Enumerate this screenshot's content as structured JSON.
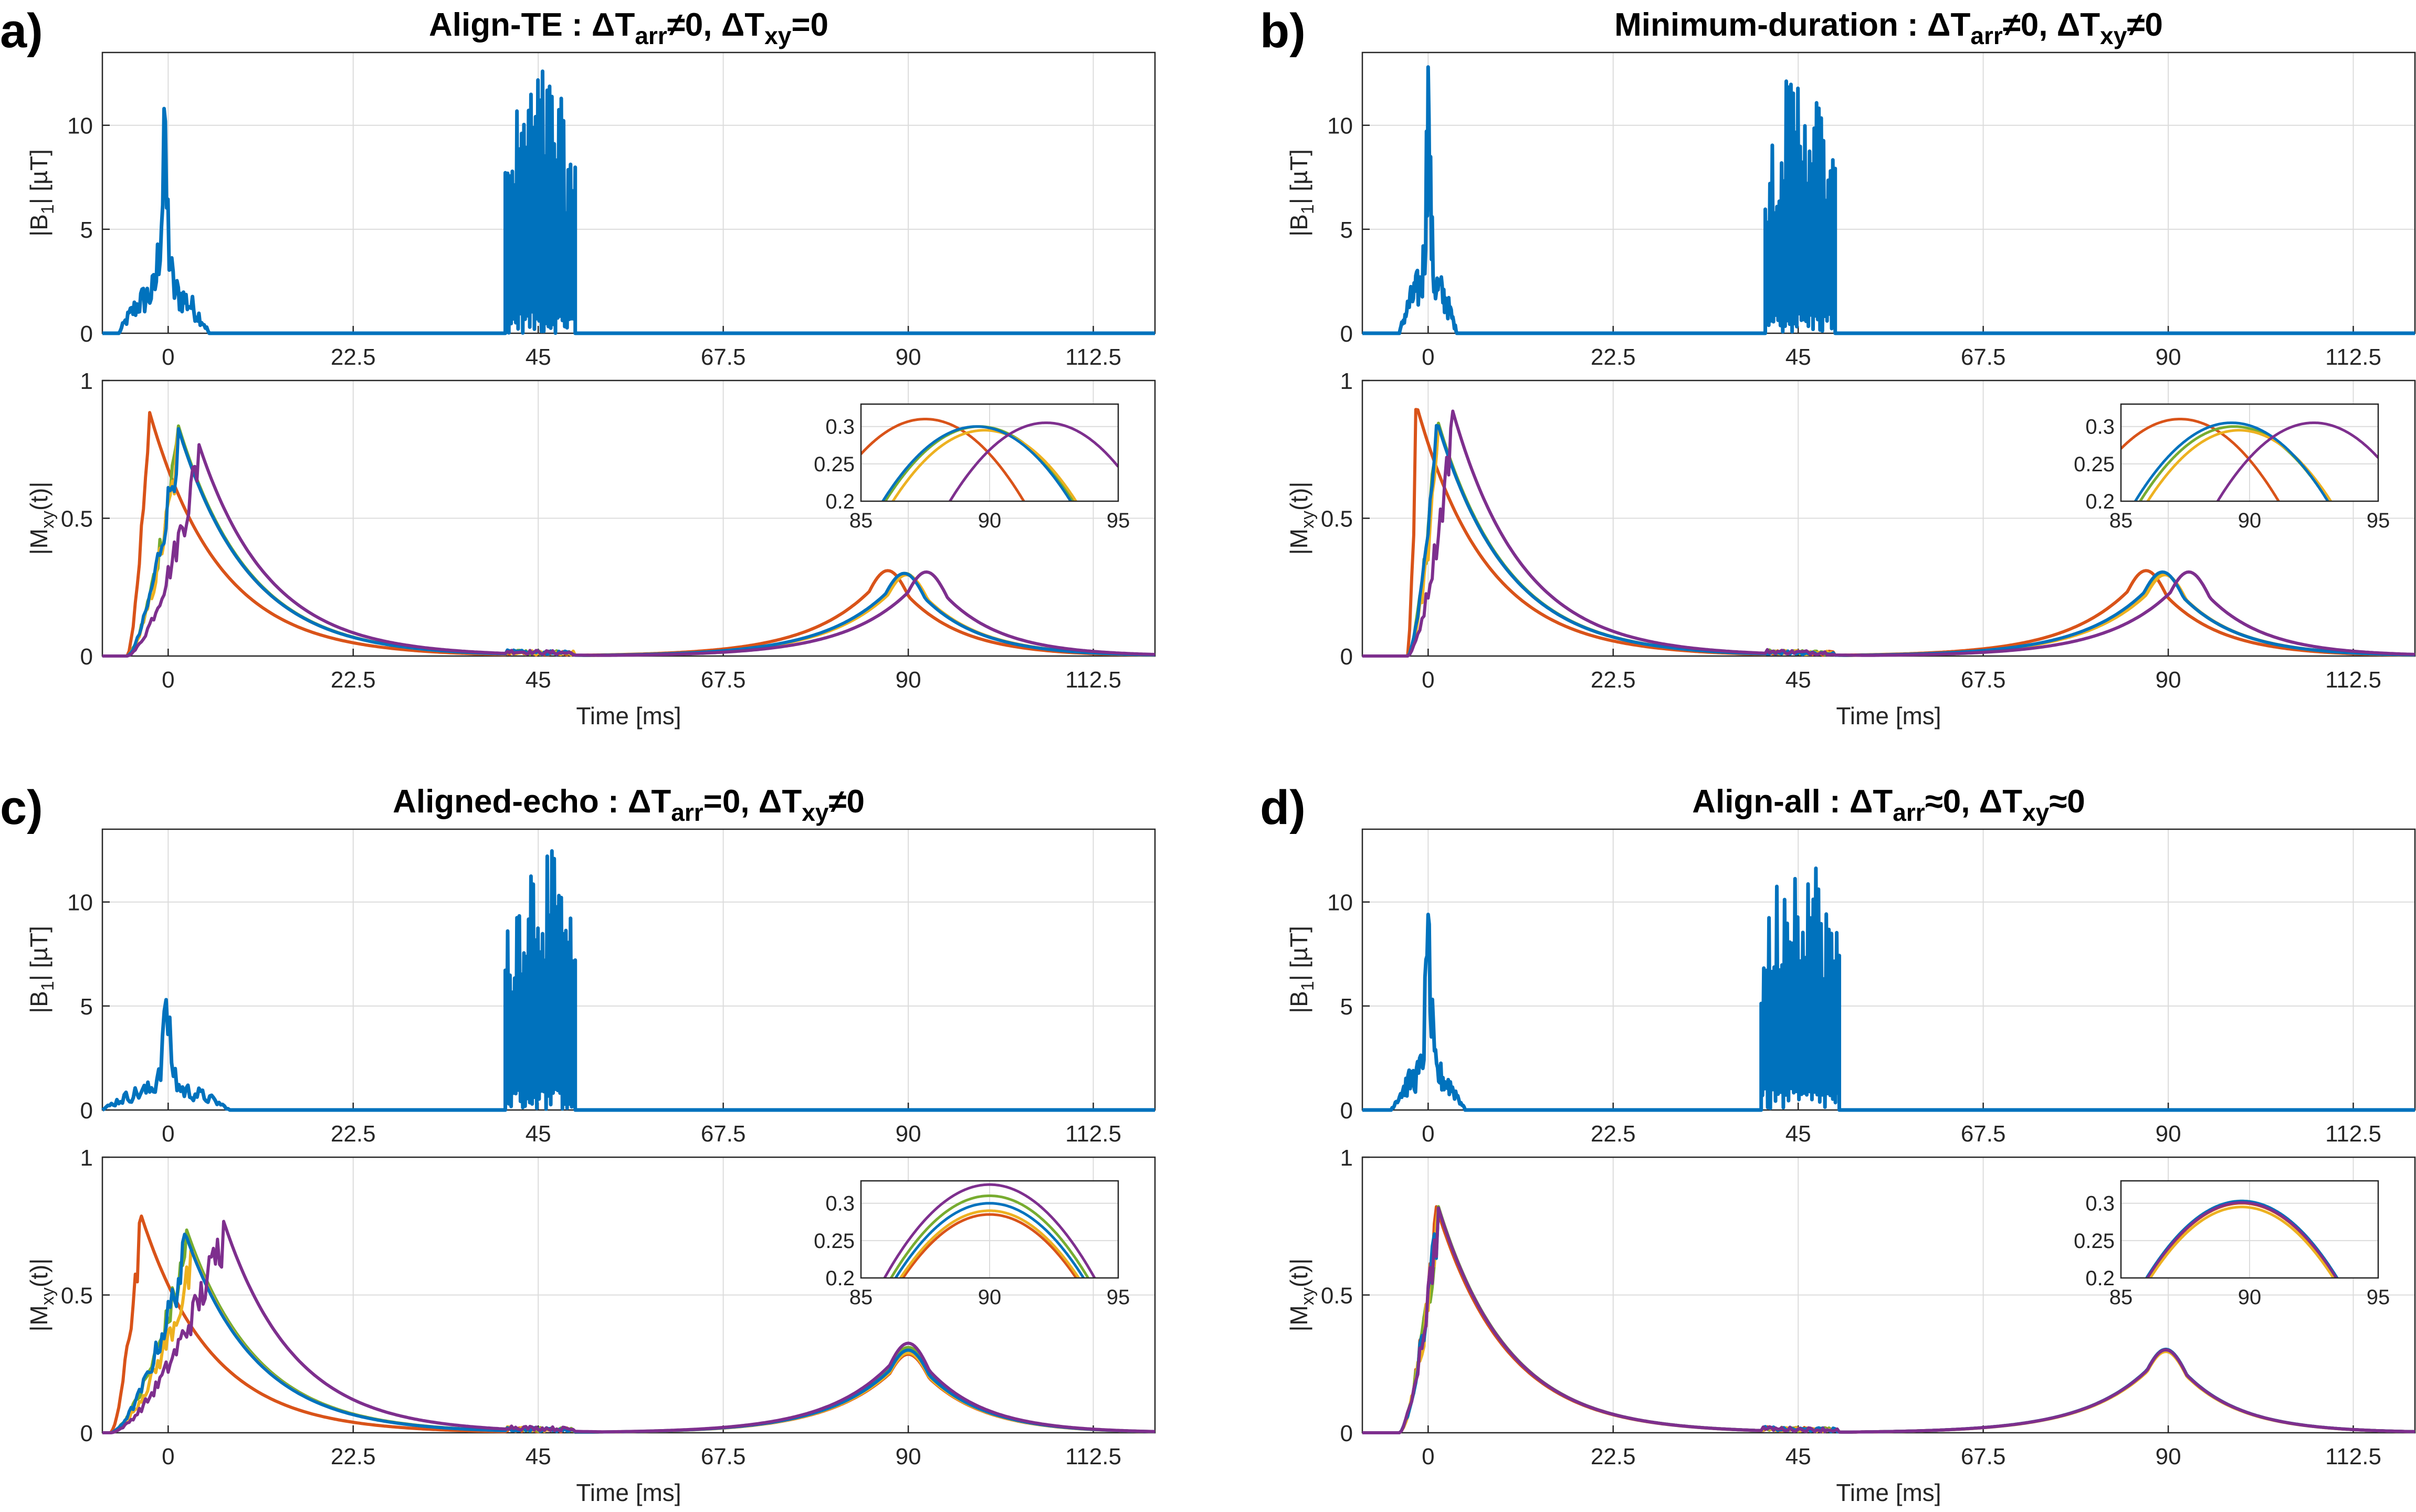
{
  "chart_data": [
    {
      "type": "line",
      "panel": "a)",
      "title": {
        "name": "Align-TE",
        "arr": "≠0",
        "xy": "=0"
      },
      "rf": {
        "ylabel": "|B1| [µT]",
        "ylim": [
          0,
          13.5
        ],
        "yticks": [
          0,
          5,
          10
        ],
        "peak1": 10.8,
        "peak2": 13.0,
        "start1": -6,
        "end1": 5,
        "start2": 41,
        "end2": 49.5
      },
      "mxy": {
        "ylabel": "|Mxy(t)|",
        "ylim": [
          0,
          1
        ],
        "yticks": [
          0,
          0.5,
          1
        ],
        "series": [
          {
            "color": "#0072BD",
            "excite_peak": 1.0,
            "excite_amp": 0.85,
            "echo_center": 89.5,
            "echo_amp": 0.3
          },
          {
            "color": "#D95319",
            "excite_peak": -2.5,
            "excite_amp": 0.91,
            "echo_center": 87.5,
            "echo_amp": 0.31
          },
          {
            "color": "#EDB120",
            "excite_peak": 1.2,
            "excite_amp": 0.83,
            "echo_center": 89.8,
            "echo_amp": 0.295
          },
          {
            "color": "#7E2F8E",
            "excite_peak": 3.5,
            "excite_amp": 0.79,
            "echo_center": 92.2,
            "echo_amp": 0.305
          },
          {
            "color": "#77AC30",
            "excite_peak": 1.0,
            "excite_amp": 0.86,
            "echo_center": 89.6,
            "echo_amp": 0.3
          }
        ]
      },
      "xlabel": "Time [ms]",
      "xlim": [
        -8,
        120
      ],
      "xticks": [
        0,
        22.5,
        45,
        67.5,
        90,
        112.5
      ]
    },
    {
      "type": "line",
      "panel": "b)",
      "title": {
        "name": "Minimum-duration",
        "arr": "≠0",
        "xy": "≠0"
      },
      "rf": {
        "ylabel": "|B1| [µT]",
        "ylim": [
          0,
          13.5
        ],
        "yticks": [
          0,
          5,
          10
        ],
        "peak1": 12.8,
        "peak2": 13.0,
        "start1": -3.5,
        "end1": 3.5,
        "start2": 41,
        "end2": 49.5
      },
      "mxy": {
        "ylabel": "|Mxy(t)|",
        "ylim": [
          0,
          1
        ],
        "yticks": [
          0,
          0.5,
          1
        ],
        "series": [
          {
            "color": "#0072BD",
            "excite_peak": 1.0,
            "excite_amp": 0.86,
            "echo_center": 89.3,
            "echo_amp": 0.305
          },
          {
            "color": "#D95319",
            "excite_peak": -1.5,
            "excite_amp": 0.92,
            "echo_center": 87.3,
            "echo_amp": 0.31
          },
          {
            "color": "#EDB120",
            "excite_peak": 1.2,
            "excite_amp": 0.84,
            "echo_center": 89.6,
            "echo_amp": 0.295
          },
          {
            "color": "#7E2F8E",
            "excite_peak": 2.8,
            "excite_amp": 0.91,
            "echo_center": 92.5,
            "echo_amp": 0.305
          },
          {
            "color": "#77AC30",
            "excite_peak": 1.0,
            "excite_amp": 0.87,
            "echo_center": 89.4,
            "echo_amp": 0.3
          }
        ]
      },
      "xlabel": "Time [ms]",
      "xlim": [
        -8,
        120
      ],
      "xticks": [
        0,
        22.5,
        45,
        67.5,
        90,
        112.5
      ]
    },
    {
      "type": "line",
      "panel": "c)",
      "title": {
        "name": "Aligned-echo",
        "arr": "=0",
        "xy": "≠0"
      },
      "rf": {
        "ylabel": "|B1| [µT]",
        "ylim": [
          0,
          13.5
        ],
        "yticks": [
          0,
          5,
          10
        ],
        "peak1": 5.3,
        "peak2": 13.0,
        "start1": -8,
        "end1": 7.5,
        "start2": 41,
        "end2": 49.5
      },
      "mxy": {
        "ylabel": "|Mxy(t)|",
        "ylim": [
          0,
          1
        ],
        "yticks": [
          0,
          0.5,
          1
        ],
        "series": [
          {
            "color": "#0072BD",
            "excite_peak": 2.0,
            "excite_amp": 0.73,
            "echo_center": 90,
            "echo_amp": 0.3
          },
          {
            "color": "#D95319",
            "excite_peak": -3.5,
            "excite_amp": 0.81,
            "echo_center": 90,
            "echo_amp": 0.285
          },
          {
            "color": "#EDB120",
            "excite_peak": 2.8,
            "excite_amp": 0.67,
            "echo_center": 90,
            "echo_amp": 0.29
          },
          {
            "color": "#7E2F8E",
            "excite_peak": 6.5,
            "excite_amp": 0.79,
            "echo_center": 90,
            "echo_amp": 0.325
          },
          {
            "color": "#77AC30",
            "excite_peak": 2.2,
            "excite_amp": 0.74,
            "echo_center": 90,
            "echo_amp": 0.31
          }
        ]
      },
      "xlabel": "Time [ms]",
      "xlim": [
        -8,
        120
      ],
      "xticks": [
        0,
        22.5,
        45,
        67.5,
        90,
        112.5
      ]
    },
    {
      "type": "line",
      "panel": "d)",
      "title": {
        "name": "Align-all",
        "arr": "≈0",
        "xy": "≈0"
      },
      "rf": {
        "ylabel": "|B1| [µT]",
        "ylim": [
          0,
          13.5
        ],
        "yticks": [
          0,
          5,
          10
        ],
        "peak1": 9.4,
        "peak2": 13.0,
        "start1": -4.5,
        "end1": 4.5,
        "start2": 40.5,
        "end2": 50
      },
      "mxy": {
        "ylabel": "|Mxy(t)|",
        "ylim": [
          0,
          1
        ],
        "yticks": [
          0,
          0.5,
          1
        ],
        "series": [
          {
            "color": "#0072BD",
            "excite_peak": 1.0,
            "excite_amp": 0.84,
            "echo_center": 89.7,
            "echo_amp": 0.303
          },
          {
            "color": "#D95319",
            "excite_peak": 0.9,
            "excite_amp": 0.83,
            "echo_center": 89.7,
            "echo_amp": 0.3
          },
          {
            "color": "#EDB120",
            "excite_peak": 1.1,
            "excite_amp": 0.83,
            "echo_center": 89.7,
            "echo_amp": 0.295
          },
          {
            "color": "#7E2F8E",
            "excite_peak": 1.0,
            "excite_amp": 0.84,
            "echo_center": 89.7,
            "echo_amp": 0.301
          },
          {
            "color": "#77AC30",
            "excite_peak": 1.0,
            "excite_amp": 0.845,
            "echo_center": 89.7,
            "echo_amp": 0.303
          }
        ]
      },
      "xlabel": "Time [ms]",
      "xlim": [
        -8,
        120
      ],
      "xticks": [
        0,
        22.5,
        45,
        67.5,
        90,
        112.5
      ]
    }
  ],
  "inset": {
    "xlim": [
      85,
      95
    ],
    "ylim": [
      0.2,
      0.33
    ],
    "xticks": [
      85,
      90,
      95
    ],
    "yticks": [
      0.2,
      0.25,
      0.3
    ]
  },
  "rf_color": "#0072BD"
}
